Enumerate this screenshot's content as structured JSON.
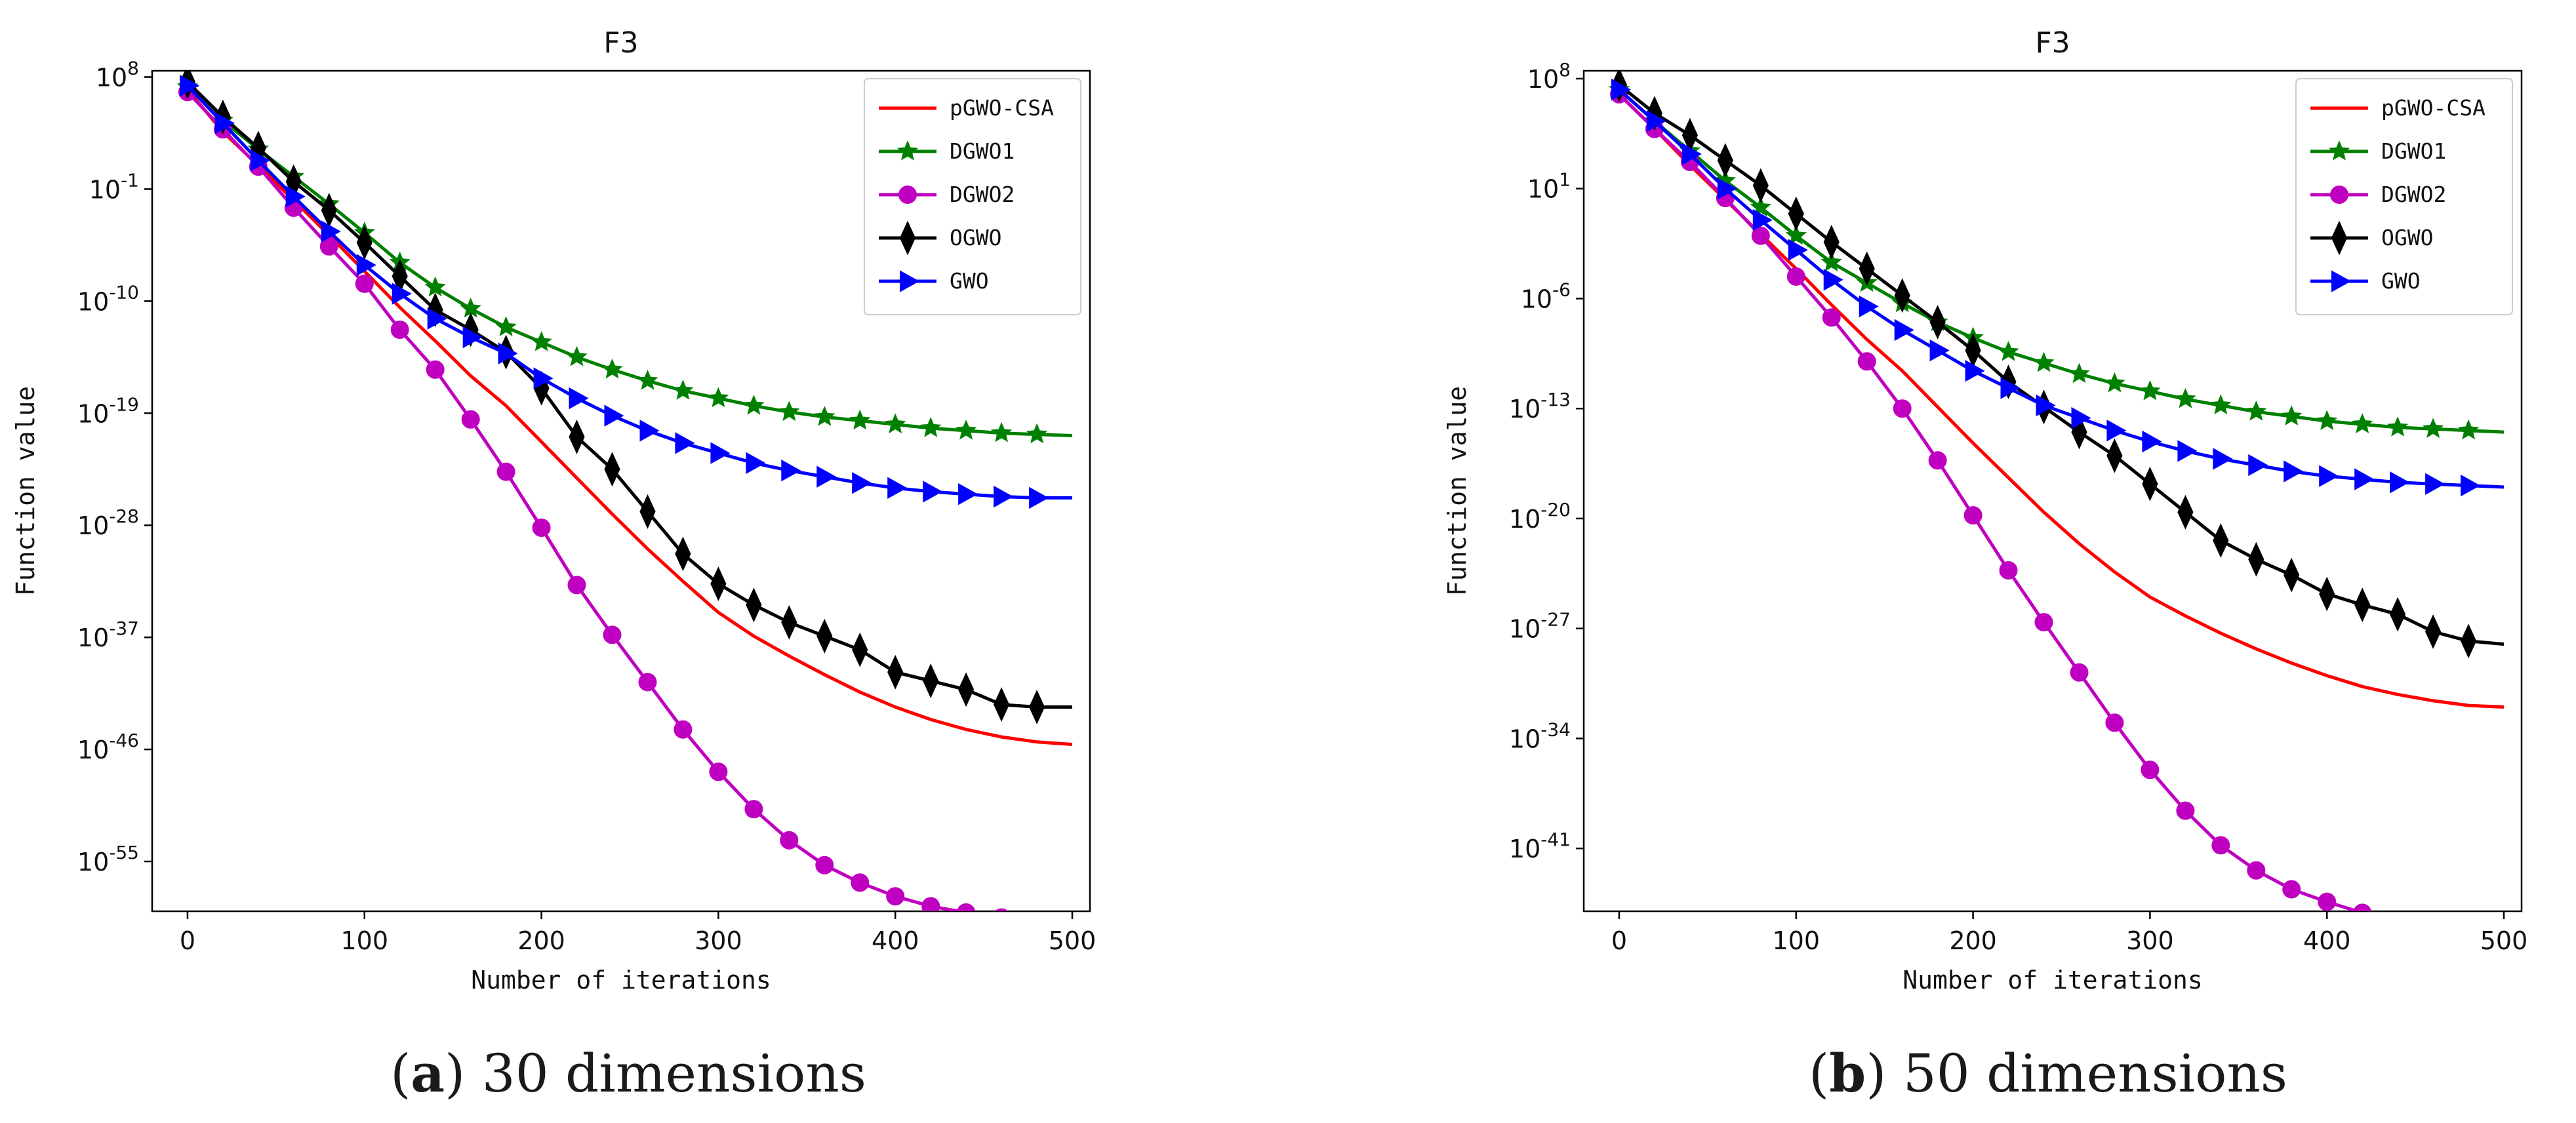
{
  "captions": [
    {
      "label": "a",
      "text": " 30 dimensions"
    },
    {
      "label": "b",
      "text": " 50 dimensions"
    }
  ],
  "chart_data": [
    {
      "type": "line",
      "title": "F3",
      "xlabel": "Number of iterations",
      "ylabel": "Function value",
      "yscale": "log",
      "xlim": [
        -20,
        510
      ],
      "ylim_exp": [
        -59,
        8.5
      ],
      "xticks": [
        0,
        100,
        200,
        300,
        400,
        500
      ],
      "yticks": [
        {
          "exp": 8,
          "label": "10^8"
        },
        {
          "exp": -1,
          "label": "10^-1"
        },
        {
          "exp": -10,
          "label": "10^-10"
        },
        {
          "exp": -19,
          "label": "10^-19"
        },
        {
          "exp": -28,
          "label": "10^-28"
        },
        {
          "exp": -37,
          "label": "10^-37"
        },
        {
          "exp": -46,
          "label": "10^-46"
        },
        {
          "exp": -55,
          "label": "10^-55"
        }
      ],
      "legend_position": "top-right",
      "x": [
        0,
        20,
        40,
        60,
        80,
        100,
        120,
        140,
        160,
        180,
        200,
        220,
        240,
        260,
        280,
        300,
        320,
        340,
        360,
        380,
        400,
        420,
        440,
        460,
        480,
        500
      ],
      "series": [
        {
          "name": "pGWO-CSA",
          "color": "#ff0000",
          "marker": "none",
          "values_log10": [
            7,
            3.6,
            0.9,
            -1.9,
            -4.7,
            -7.6,
            -10.5,
            -13.2,
            -16,
            -18.4,
            -21.3,
            -24.2,
            -27.1,
            -29.9,
            -32.5,
            -35,
            -36.9,
            -38.5,
            -40,
            -41.4,
            -42.6,
            -43.6,
            -44.4,
            -45,
            -45.4,
            -45.6
          ]
        },
        {
          "name": "DGWO1",
          "color": "#008000",
          "marker": "star",
          "values_log10": [
            7.2,
            4.5,
            2.2,
            0,
            -2.2,
            -4.5,
            -6.9,
            -8.9,
            -10.6,
            -12.1,
            -13.3,
            -14.5,
            -15.5,
            -16.4,
            -17.2,
            -17.8,
            -18.4,
            -18.9,
            -19.3,
            -19.6,
            -19.9,
            -20.2,
            -20.4,
            -20.6,
            -20.7,
            -20.8
          ]
        },
        {
          "name": "DGWO2",
          "color": "#c000c0",
          "marker": "circle",
          "values_log10": [
            6.8,
            3.8,
            0.8,
            -2.5,
            -5.6,
            -8.6,
            -12.3,
            -15.5,
            -19.5,
            -23.7,
            -28.2,
            -32.8,
            -36.8,
            -40.6,
            -44.4,
            -47.8,
            -50.8,
            -53.3,
            -55.3,
            -56.7,
            -57.8,
            -58.6,
            -59.1,
            -59.5,
            -59.8,
            -59.8
          ]
        },
        {
          "name": "OGWO",
          "color": "#000000",
          "marker": "diamond",
          "values_log10": [
            7.6,
            4.8,
            2.3,
            -0.4,
            -2.7,
            -5.3,
            -8,
            -10.7,
            -12.3,
            -14.1,
            -17,
            -20.9,
            -23.5,
            -26.9,
            -30.3,
            -32.7,
            -34.4,
            -35.8,
            -36.9,
            -38,
            -39.8,
            -40.5,
            -41.2,
            -42.4,
            -42.6,
            -42.6
          ]
        },
        {
          "name": "GWO",
          "color": "#0000ff",
          "marker": "triangle-right",
          "values_log10": [
            7.3,
            4.3,
            1.3,
            -1.6,
            -4.4,
            -7.1,
            -9.4,
            -11.4,
            -12.9,
            -14.2,
            -16.2,
            -17.8,
            -19.2,
            -20.4,
            -21.4,
            -22.2,
            -23,
            -23.6,
            -24.1,
            -24.6,
            -25,
            -25.3,
            -25.5,
            -25.7,
            -25.8,
            -25.8
          ]
        }
      ]
    },
    {
      "type": "line",
      "title": "F3",
      "xlabel": "Number of iterations",
      "ylabel": "Function value",
      "yscale": "log",
      "xlim": [
        -20,
        510
      ],
      "ylim_exp": [
        -45,
        8.5
      ],
      "xticks": [
        0,
        100,
        200,
        300,
        400,
        500
      ],
      "yticks": [
        {
          "exp": 8,
          "label": "10^8"
        },
        {
          "exp": 1,
          "label": "10^1"
        },
        {
          "exp": -6,
          "label": "10^-6"
        },
        {
          "exp": -13,
          "label": "10^-13"
        },
        {
          "exp": -20,
          "label": "10^-20"
        },
        {
          "exp": -27,
          "label": "10^-27"
        },
        {
          "exp": -34,
          "label": "10^-34"
        },
        {
          "exp": -41,
          "label": "10^-41"
        }
      ],
      "legend_position": "top-right",
      "x": [
        0,
        20,
        40,
        60,
        80,
        100,
        120,
        140,
        160,
        180,
        200,
        220,
        240,
        260,
        280,
        300,
        320,
        340,
        360,
        380,
        400,
        420,
        440,
        460,
        480,
        500
      ],
      "series": [
        {
          "name": "pGWO-CSA",
          "color": "#ff0000",
          "marker": "none",
          "values_log10": [
            7,
            4.8,
            2.5,
            0.3,
            -1.9,
            -4.1,
            -6.4,
            -8.6,
            -10.6,
            -12.9,
            -15.2,
            -17.4,
            -19.6,
            -21.6,
            -23.4,
            -25,
            -26.2,
            -27.3,
            -28.3,
            -29.2,
            -30,
            -30.7,
            -31.2,
            -31.6,
            -31.9,
            -32
          ]
        },
        {
          "name": "DGWO1",
          "color": "#008000",
          "marker": "star",
          "values_log10": [
            7.3,
            5.3,
            3.4,
            1.5,
            -0.2,
            -2,
            -3.7,
            -5,
            -6.3,
            -7.5,
            -8.5,
            -9.4,
            -10.1,
            -10.8,
            -11.4,
            -11.9,
            -12.4,
            -12.8,
            -13.2,
            -13.5,
            -13.8,
            -14,
            -14.2,
            -14.3,
            -14.4,
            -14.5
          ]
        },
        {
          "name": "DGWO2",
          "color": "#c000c0",
          "marker": "circle",
          "values_log10": [
            7,
            4.8,
            2.7,
            0.4,
            -2,
            -4.6,
            -7.2,
            -10,
            -13,
            -16.3,
            -19.8,
            -23.3,
            -26.6,
            -29.8,
            -33,
            -36,
            -38.6,
            -40.8,
            -42.4,
            -43.6,
            -44.4,
            -45.1,
            -45.6,
            -45.9,
            -46.1,
            -46.1
          ]
        },
        {
          "name": "OGWO",
          "color": "#000000",
          "marker": "diamond",
          "values_log10": [
            7.6,
            5.8,
            4.4,
            2.8,
            1.2,
            -0.6,
            -2.4,
            -4.1,
            -5.8,
            -7.5,
            -9.3,
            -11.3,
            -12.9,
            -14.5,
            -16,
            -17.8,
            -19.6,
            -21.4,
            -22.6,
            -23.6,
            -24.8,
            -25.5,
            -26.1,
            -27.2,
            -27.8,
            -28
          ]
        },
        {
          "name": "GWO",
          "color": "#0000ff",
          "marker": "triangle-right",
          "values_log10": [
            7.3,
            5.3,
            3.2,
            1,
            -1,
            -2.9,
            -4.8,
            -6.5,
            -8,
            -9.3,
            -10.6,
            -11.7,
            -12.8,
            -13.6,
            -14.4,
            -15.1,
            -15.7,
            -16.2,
            -16.6,
            -17,
            -17.3,
            -17.5,
            -17.7,
            -17.8,
            -17.9,
            -18
          ]
        }
      ]
    }
  ]
}
